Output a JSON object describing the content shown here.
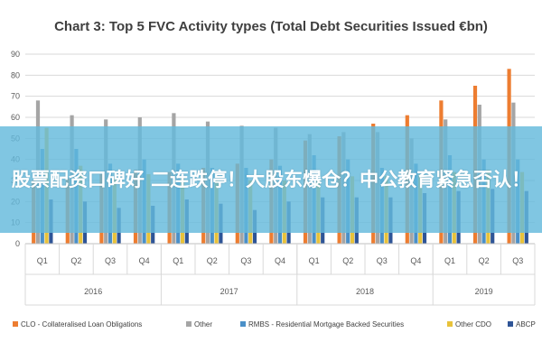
{
  "chart_data": {
    "type": "bar",
    "title": "Chart 3: Top 5 FVC Activity types (Total Debt Securities Issued €bn)",
    "xlabel": "",
    "ylabel": "",
    "ylim": [
      0,
      90
    ],
    "yticks": [
      0,
      10,
      20,
      30,
      40,
      50,
      60,
      70,
      80,
      90
    ],
    "grid": true,
    "legend_position": "bottom",
    "categories": [
      "Q1",
      "Q2",
      "Q3",
      "Q4",
      "Q1",
      "Q2",
      "Q3",
      "Q4",
      "Q1",
      "Q2",
      "Q3",
      "Q4",
      "Q1",
      "Q2",
      "Q3"
    ],
    "groups": [
      {
        "label": "2016",
        "span": 4
      },
      {
        "label": "2017",
        "span": 4
      },
      {
        "label": "2018",
        "span": 4
      },
      {
        "label": "2019",
        "span": 3
      }
    ],
    "series": [
      {
        "name": "CLO - Collateralised Loan Obligations",
        "color": "#ed7d31",
        "values": [
          30,
          31,
          33,
          35,
          34,
          36,
          38,
          40,
          49,
          51,
          57,
          61,
          68,
          75,
          83
        ]
      },
      {
        "name": "Other",
        "color": "#a5a5a5",
        "values": [
          68,
          61,
          59,
          60,
          62,
          58,
          56,
          55,
          52,
          53,
          53,
          50,
          59,
          66,
          67
        ]
      },
      {
        "name": "RMBS - Residential Mortgage Backed Securities",
        "color": "#4a90c8",
        "values": [
          45,
          45,
          38,
          40,
          38,
          36,
          36,
          37,
          42,
          40,
          36,
          38,
          42,
          40,
          40
        ]
      },
      {
        "name": "Other CDO",
        "color": "#e8c23a",
        "values": [
          55,
          37,
          31,
          33,
          32,
          30,
          30,
          30,
          30,
          32,
          32,
          33,
          34,
          35,
          34
        ]
      },
      {
        "name": "ABCP",
        "color": "#2f5597",
        "values": [
          21,
          20,
          17,
          18,
          21,
          19,
          16,
          20,
          22,
          22,
          22,
          24,
          25,
          26,
          25
        ]
      }
    ]
  },
  "banner": {
    "text": "股票配资口碑好 二连跌停！大股东爆仓？中公教育紧急否认！"
  }
}
